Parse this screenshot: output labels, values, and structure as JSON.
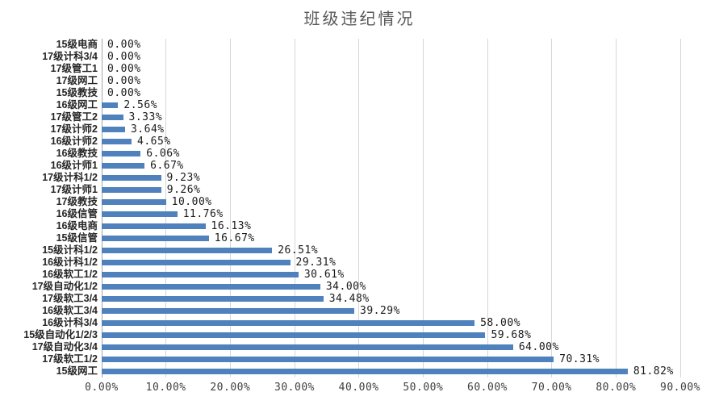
{
  "chart_data": {
    "type": "bar",
    "orientation": "horizontal",
    "title": "班级违纪情况",
    "categories": [
      "15级电商",
      "17级计科3/4",
      "17级管工1",
      "17级网工",
      "15级教技",
      "16级网工",
      "17级管工2",
      "17级计师2",
      "16级计师2",
      "16级教技",
      "16级计师1",
      "17级计科1/2",
      "17级计师1",
      "17级教技",
      "16级信管",
      "16级电商",
      "15级信管",
      "15级计科1/2",
      "16级计科1/2",
      "16级软工1/2",
      "17级自动化1/2",
      "17级软工3/4",
      "16级软工3/4",
      "16级计科3/4",
      "15级自动化1/2/3",
      "17级自动化3/4",
      "17级软工1/2",
      "15级网工"
    ],
    "values": [
      0,
      0,
      0,
      0,
      0,
      2.56,
      3.33,
      3.64,
      4.65,
      6.06,
      6.67,
      9.23,
      9.26,
      10.0,
      11.76,
      16.13,
      16.67,
      26.51,
      29.31,
      30.61,
      34.0,
      34.48,
      39.29,
      58.0,
      59.68,
      64.0,
      70.31,
      81.82
    ],
    "value_labels": [
      "0.00%",
      "0.00%",
      "0.00%",
      "0.00%",
      "0.00%",
      "2.56%",
      "3.33%",
      "3.64%",
      "4.65%",
      "6.06%",
      "6.67%",
      "9.23%",
      "9.26%",
      "10.00%",
      "11.76%",
      "16.13%",
      "16.67%",
      "26.51%",
      "29.31%",
      "30.61%",
      "34.00%",
      "34.48%",
      "39.29%",
      "58.00%",
      "59.68%",
      "64.00%",
      "70.31%",
      "81.82%"
    ],
    "x_ticks": [
      "0.00%",
      "10.00%",
      "20.00%",
      "30.00%",
      "40.00%",
      "50.00%",
      "60.00%",
      "70.00%",
      "80.00%",
      "90.00%"
    ],
    "xlim": [
      0,
      90
    ],
    "grid": true,
    "legend": "none",
    "data_labels": "outside-end"
  },
  "colors": {
    "bar": "#4F81BD",
    "gridline": "#D6D6D6",
    "axis_line": "#A6A6A6",
    "title_text": "#595959",
    "category_text": "#262626",
    "value_text": "#1a1a1a",
    "tick_text": "#404040",
    "background": "#FFFFFF"
  }
}
